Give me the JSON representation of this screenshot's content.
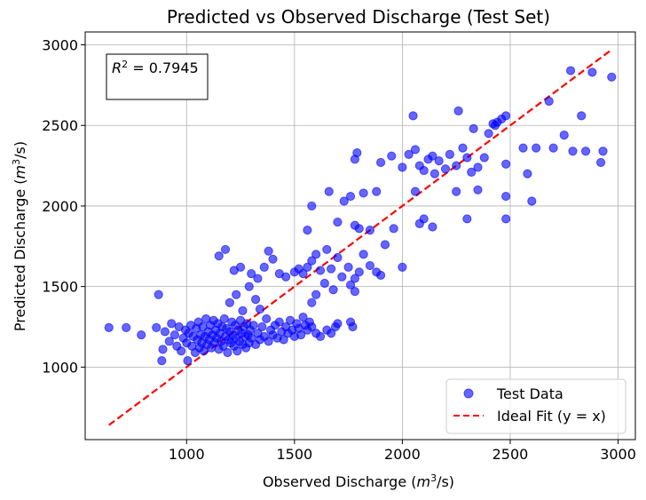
{
  "chart_data": {
    "type": "scatter",
    "title": "Predicted vs Observed Discharge (Test Set)",
    "xlabel": "Observed Discharge (m³/s)",
    "ylabel": "Predicted Discharge (m³/s)",
    "xlim": [
      530,
      3080
    ],
    "ylim": [
      550,
      3080
    ],
    "xticks": [
      1000,
      1500,
      2000,
      2500,
      3000
    ],
    "yticks": [
      1000,
      1500,
      2000,
      2500,
      3000
    ],
    "grid": true,
    "legend_position": "bottom-right",
    "annotation": {
      "label": "R² = 0.7945",
      "value": 0.7945
    },
    "colors": {
      "scatter": "#0000ff",
      "ideal_line": "#ff0000",
      "grid": "#b0b0b0"
    },
    "series": [
      {
        "name": "Test Data",
        "kind": "scatter",
        "points": [
          [
            640,
            1245
          ],
          [
            720,
            1245
          ],
          [
            790,
            1200
          ],
          [
            860,
            1245
          ],
          [
            870,
            1450
          ],
          [
            885,
            1040
          ],
          [
            890,
            1110
          ],
          [
            900,
            1220
          ],
          [
            920,
            1160
          ],
          [
            930,
            1270
          ],
          [
            945,
            1200
          ],
          [
            955,
            1130
          ],
          [
            965,
            1250
          ],
          [
            975,
            1100
          ],
          [
            985,
            1180
          ],
          [
            995,
            1230
          ],
          [
            1000,
            1150
          ],
          [
            1005,
            1040
          ],
          [
            1010,
            1210
          ],
          [
            1020,
            1260
          ],
          [
            1025,
            1130
          ],
          [
            1030,
            1190
          ],
          [
            1040,
            1090
          ],
          [
            1045,
            1240
          ],
          [
            1050,
            1170
          ],
          [
            1055,
            1280
          ],
          [
            1060,
            1120
          ],
          [
            1065,
            1200
          ],
          [
            1070,
            1150
          ],
          [
            1075,
            1250
          ],
          [
            1080,
            1100
          ],
          [
            1085,
            1190
          ],
          [
            1090,
            1300
          ],
          [
            1095,
            1140
          ],
          [
            1100,
            1220
          ],
          [
            1105,
            1170
          ],
          [
            1110,
            1260
          ],
          [
            1115,
            1120
          ],
          [
            1120,
            1200
          ],
          [
            1125,
            1290
          ],
          [
            1130,
            1150
          ],
          [
            1135,
            1230
          ],
          [
            1140,
            1180
          ],
          [
            1145,
            1270
          ],
          [
            1150,
            1110
          ],
          [
            1155,
            1210
          ],
          [
            1160,
            1160
          ],
          [
            1165,
            1250
          ],
          [
            1170,
            1130
          ],
          [
            1175,
            1300
          ],
          [
            1180,
            1190
          ],
          [
            1185,
            1240
          ],
          [
            1190,
            1090
          ],
          [
            1195,
            1170
          ],
          [
            1200,
            1220
          ],
          [
            1205,
            1150
          ],
          [
            1210,
            1280
          ],
          [
            1215,
            1200
          ],
          [
            1220,
            1130
          ],
          [
            1225,
            1260
          ],
          [
            1230,
            1180
          ],
          [
            1235,
            1100
          ],
          [
            1240,
            1230
          ],
          [
            1245,
            1160
          ],
          [
            1250,
            1290
          ],
          [
            1255,
            1210
          ],
          [
            1260,
            1140
          ],
          [
            1265,
            1250
          ],
          [
            1270,
            1190
          ],
          [
            1275,
            1120
          ],
          [
            1280,
            1270
          ],
          [
            1285,
            1200
          ],
          [
            1290,
            1150
          ],
          [
            1295,
            1230
          ],
          [
            1300,
            1180
          ],
          [
            1310,
            1260
          ],
          [
            1320,
            1140
          ],
          [
            1330,
            1210
          ],
          [
            1340,
            1170
          ],
          [
            1350,
            1250
          ],
          [
            1360,
            1190
          ],
          [
            1370,
            1300
          ],
          [
            1380,
            1160
          ],
          [
            1390,
            1230
          ],
          [
            1400,
            1200
          ],
          [
            1410,
            1260
          ],
          [
            1420,
            1180
          ],
          [
            1430,
            1280
          ],
          [
            1440,
            1220
          ],
          [
            1450,
            1170
          ],
          [
            1460,
            1250
          ],
          [
            1470,
            1210
          ],
          [
            1480,
            1290
          ],
          [
            1490,
            1230
          ],
          [
            1500,
            1190
          ],
          [
            1510,
            1270
          ],
          [
            1520,
            1240
          ],
          [
            1530,
            1200
          ],
          [
            1540,
            1310
          ],
          [
            1550,
            1260
          ],
          [
            1560,
            1230
          ],
          [
            1570,
            1280
          ],
          [
            1580,
            1250
          ],
          [
            1600,
            1210
          ],
          [
            1620,
            1190
          ],
          [
            1650,
            1230
          ],
          [
            1670,
            1210
          ],
          [
            1690,
            1250
          ],
          [
            1700,
            1270
          ],
          [
            1760,
            1280
          ],
          [
            1770,
            1250
          ],
          [
            1180,
            1730
          ],
          [
            1150,
            1690
          ],
          [
            1220,
            1600
          ],
          [
            1250,
            1620
          ],
          [
            1300,
            1580
          ],
          [
            1330,
            1550
          ],
          [
            1360,
            1620
          ],
          [
            1380,
            1720
          ],
          [
            1400,
            1670
          ],
          [
            1430,
            1580
          ],
          [
            1460,
            1560
          ],
          [
            1500,
            1590
          ],
          [
            1520,
            1610
          ],
          [
            1540,
            1580
          ],
          [
            1560,
            1620
          ],
          [
            1580,
            1660
          ],
          [
            1600,
            1700
          ],
          [
            1620,
            1600
          ],
          [
            1650,
            1730
          ],
          [
            1670,
            1610
          ],
          [
            1700,
            1680
          ],
          [
            1720,
            1560
          ],
          [
            1750,
            1620
          ],
          [
            1780,
            1550
          ],
          [
            1800,
            1590
          ],
          [
            1820,
            1700
          ],
          [
            1850,
            1630
          ],
          [
            1880,
            1590
          ],
          [
            1900,
            1570
          ],
          [
            1200,
            1400
          ],
          [
            1230,
            1450
          ],
          [
            1260,
            1350
          ],
          [
            1290,
            1500
          ],
          [
            1320,
            1420
          ],
          [
            1340,
            1360
          ],
          [
            1580,
            1400
          ],
          [
            1600,
            1450
          ],
          [
            1640,
            1520
          ],
          [
            1680,
            1480
          ],
          [
            1760,
            1510
          ],
          [
            1780,
            1470
          ],
          [
            1560,
            1850
          ],
          [
            1580,
            2000
          ],
          [
            1660,
            2090
          ],
          [
            1700,
            1900
          ],
          [
            1730,
            2030
          ],
          [
            1760,
            2060
          ],
          [
            1780,
            1880
          ],
          [
            1800,
            1860
          ],
          [
            1820,
            2080
          ],
          [
            1850,
            1850
          ],
          [
            1880,
            2090
          ],
          [
            1920,
            1760
          ],
          [
            1960,
            1860
          ],
          [
            2000,
            1620
          ],
          [
            1780,
            2290
          ],
          [
            1790,
            2330
          ],
          [
            1900,
            2270
          ],
          [
            1950,
            2310
          ],
          [
            2000,
            2240
          ],
          [
            2030,
            2320
          ],
          [
            2050,
            2560
          ],
          [
            2060,
            2350
          ],
          [
            2080,
            2250
          ],
          [
            2100,
            2220
          ],
          [
            2120,
            2290
          ],
          [
            2140,
            2310
          ],
          [
            2150,
            2200
          ],
          [
            2170,
            2280
          ],
          [
            2200,
            2230
          ],
          [
            2220,
            2320
          ],
          [
            2250,
            2250
          ],
          [
            2260,
            2590
          ],
          [
            2280,
            2360
          ],
          [
            2300,
            2300
          ],
          [
            2320,
            2210
          ],
          [
            2350,
            2240
          ],
          [
            2380,
            2300
          ],
          [
            2400,
            2450
          ],
          [
            2420,
            2510
          ],
          [
            2440,
            2520
          ],
          [
            2460,
            2540
          ],
          [
            2480,
            2560
          ],
          [
            2480,
            2260
          ],
          [
            2560,
            2360
          ],
          [
            2580,
            2200
          ],
          [
            2600,
            2030
          ],
          [
            2620,
            2360
          ],
          [
            2680,
            2650
          ],
          [
            2700,
            2360
          ],
          [
            2750,
            2440
          ],
          [
            2780,
            2840
          ],
          [
            2790,
            2340
          ],
          [
            2830,
            2560
          ],
          [
            2850,
            2340
          ],
          [
            2880,
            2830
          ],
          [
            2920,
            2270
          ],
          [
            2930,
            2340
          ],
          [
            2970,
            2800
          ],
          [
            2060,
            2090
          ],
          [
            2080,
            1890
          ],
          [
            2100,
            1920
          ],
          [
            2140,
            1870
          ],
          [
            2250,
            2090
          ],
          [
            2300,
            1920
          ],
          [
            2480,
            1920
          ],
          [
            2480,
            2060
          ],
          [
            2430,
            2500
          ],
          [
            2350,
            2100
          ],
          [
            2330,
            2480
          ]
        ]
      },
      {
        "name": "Ideal Fit (y = x)",
        "kind": "line",
        "points": [
          [
            640,
            640
          ],
          [
            2970,
            2970
          ]
        ]
      }
    ]
  }
}
